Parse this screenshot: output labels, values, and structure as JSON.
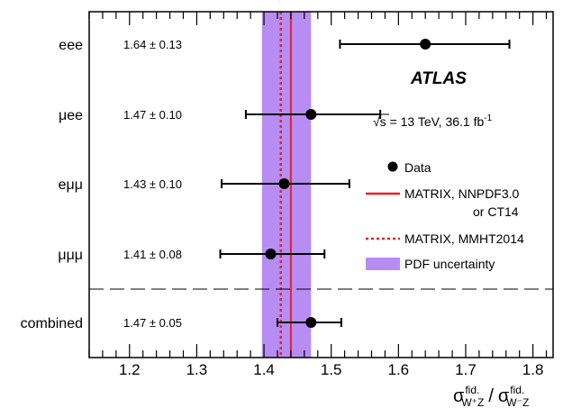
{
  "chart_data": {
    "type": "scatter",
    "orientation": "horizontal",
    "experiment": "ATLAS",
    "energy_label": "√s = 13 TeV, 36.1 fb",
    "energy_label_sup": "-1",
    "xlabel": {
      "sigma": "σ",
      "sup": "fid.",
      "sub1": "W⁺Z",
      "slash": "/",
      "sub2": "W⁻Z"
    },
    "xlim": [
      1.14,
      1.83
    ],
    "x_ticks": [
      1.2,
      1.3,
      1.4,
      1.5,
      1.6,
      1.7,
      1.8
    ],
    "x_tick_labels": [
      "1.2",
      "1.3",
      "1.4",
      "1.5",
      "1.6",
      "1.7",
      "1.8"
    ],
    "grid": false,
    "channels": [
      {
        "label": "eee",
        "value": 1.64,
        "err_low": 1.513,
        "err_high": 1.765,
        "text": "1.64 ± 0.13"
      },
      {
        "label": "μee",
        "value": 1.47,
        "err_low": 1.373,
        "err_high": 1.573,
        "text": "1.47 ± 0.10"
      },
      {
        "label": "eμμ",
        "value": 1.43,
        "err_low": 1.337,
        "err_high": 1.527,
        "text": "1.43 ± 0.10"
      },
      {
        "label": "μμμ",
        "value": 1.41,
        "err_low": 1.335,
        "err_high": 1.49,
        "text": "1.41 ± 0.08"
      },
      {
        "label": "combined",
        "value": 1.47,
        "err_low": 1.42,
        "err_high": 1.515,
        "text": "1.47 ± 0.05"
      }
    ],
    "predictions": {
      "nnpdf": 1.44,
      "mmht": 1.425,
      "pdf_band": [
        1.397,
        1.47
      ]
    },
    "legend": {
      "placement": "right",
      "data": "Data",
      "nnpdf_line1": "MATRIX, NNPDF3.0",
      "nnpdf_line2": "or CT14",
      "mmht": "MATRIX, MMHT2014",
      "pdf": "PDF uncertainty"
    },
    "colors": {
      "band": "#b78cf3",
      "nnpdf": "#e3232b",
      "mmht": "#e3232b",
      "data": "#000000"
    }
  }
}
